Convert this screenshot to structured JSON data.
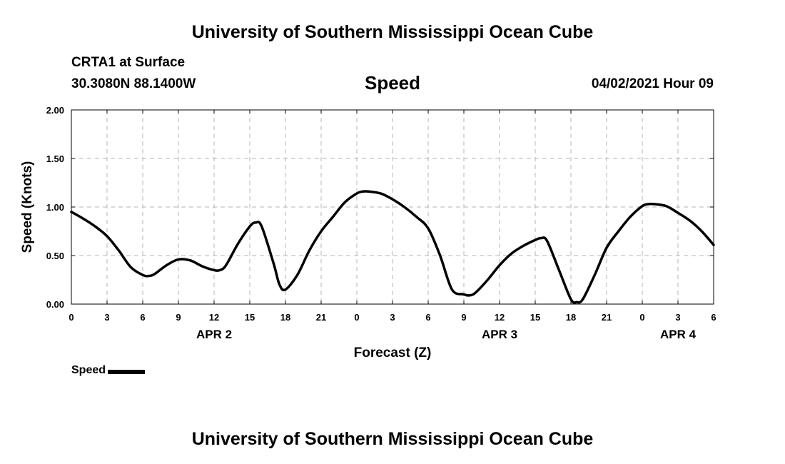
{
  "header": {
    "title": "University of Southern Mississippi Ocean Cube",
    "station": "CRTA1 at Surface",
    "coordinates": "30.3080N  88.1400W",
    "chart_title": "Speed",
    "datetime": "04/02/2021 Hour 09"
  },
  "footer": {
    "title": "University of Southern Mississippi Ocean Cube"
  },
  "legend": {
    "label": "Speed"
  },
  "chart_data": {
    "type": "line",
    "title": "Speed",
    "xlabel": "Forecast (Z)",
    "ylabel": "Speed (Knots)",
    "xlim": [
      0,
      54
    ],
    "ylim": [
      0,
      2
    ],
    "y_ticks": [
      "0.00",
      "0.50",
      "1.00",
      "1.50",
      "2.00"
    ],
    "x_tick_hours": [
      0,
      3,
      6,
      9,
      12,
      15,
      18,
      21,
      24,
      27,
      30,
      33,
      36,
      39,
      42,
      45,
      48,
      51,
      54
    ],
    "x_tick_labels": [
      "0",
      "3",
      "6",
      "9",
      "12",
      "15",
      "18",
      "21",
      "0",
      "3",
      "6",
      "9",
      "12",
      "15",
      "18",
      "21",
      "0",
      "3",
      "6"
    ],
    "day_labels": [
      {
        "hour": 12,
        "label": "APR 2"
      },
      {
        "hour": 36,
        "label": "APR 3"
      },
      {
        "hour": 51,
        "label": "APR 4"
      }
    ],
    "grid": true,
    "legend_position": "bottom-left",
    "series": [
      {
        "name": "Speed",
        "color": "#000000",
        "x": [
          0,
          1,
          2,
          3,
          4,
          5,
          6,
          6.5,
          7,
          8,
          9,
          10,
          11,
          12,
          12.5,
          13,
          14,
          15,
          15.5,
          16,
          17,
          17.5,
          18,
          19,
          20,
          21,
          22,
          23,
          24,
          24.5,
          25,
          26,
          27,
          28,
          29,
          30,
          31,
          32,
          33,
          33.5,
          34,
          35,
          36,
          37,
          38,
          39,
          39.5,
          40,
          41,
          42,
          42.5,
          43,
          44,
          45,
          46,
          47,
          48,
          48.5,
          49,
          50,
          51,
          52,
          53,
          54
        ],
        "y": [
          0.95,
          0.88,
          0.8,
          0.7,
          0.55,
          0.38,
          0.3,
          0.29,
          0.31,
          0.4,
          0.46,
          0.45,
          0.39,
          0.35,
          0.35,
          0.4,
          0.62,
          0.8,
          0.84,
          0.8,
          0.42,
          0.2,
          0.15,
          0.3,
          0.55,
          0.75,
          0.9,
          1.05,
          1.14,
          1.16,
          1.16,
          1.14,
          1.08,
          1.0,
          0.9,
          0.78,
          0.5,
          0.15,
          0.1,
          0.09,
          0.12,
          0.25,
          0.4,
          0.52,
          0.6,
          0.66,
          0.68,
          0.65,
          0.35,
          0.05,
          0.02,
          0.05,
          0.3,
          0.58,
          0.75,
          0.9,
          1.01,
          1.03,
          1.03,
          1.01,
          0.94,
          0.86,
          0.75,
          0.61
        ]
      }
    ]
  }
}
